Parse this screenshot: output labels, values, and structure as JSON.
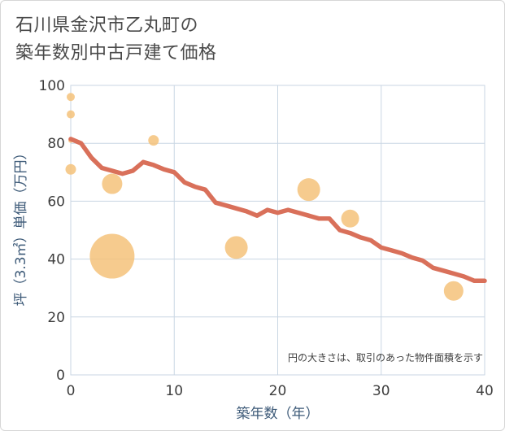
{
  "chart_data": {
    "type": "scatter",
    "title_lines": [
      "石川県金沢市乙丸町の",
      "築年数別中古戸建て価格"
    ],
    "xlabel": "築年数（年）",
    "ylabel": "坪（3.3㎡）単価（万円）",
    "xlim": [
      0,
      40
    ],
    "ylim": [
      0,
      100
    ],
    "x_ticks": [
      0,
      10,
      20,
      30,
      40
    ],
    "y_ticks": [
      0,
      20,
      40,
      60,
      80,
      100
    ],
    "grid": true,
    "annotation": "円の大きさは、取引のあった物件面積を示す",
    "colors": {
      "bubble": "#f5c27a",
      "line": "#d9705a",
      "grid": "#c9d6e3",
      "axis_text": "#3d5a78"
    },
    "scatter_points": [
      {
        "x": 0,
        "y": 96,
        "size": 1
      },
      {
        "x": 0,
        "y": 90,
        "size": 1
      },
      {
        "x": 0,
        "y": 71,
        "size": 1.3
      },
      {
        "x": 0,
        "y": 81,
        "size": 0.6
      },
      {
        "x": 4,
        "y": 41,
        "size": 5.5
      },
      {
        "x": 4,
        "y": 66,
        "size": 2.5
      },
      {
        "x": 8,
        "y": 81,
        "size": 1.3
      },
      {
        "x": 16,
        "y": 44,
        "size": 2.8
      },
      {
        "x": 23,
        "y": 64,
        "size": 2.8
      },
      {
        "x": 27,
        "y": 54,
        "size": 2.2
      },
      {
        "x": 37,
        "y": 29,
        "size": 2.4
      }
    ],
    "trend_line": {
      "x": [
        0,
        1,
        2,
        3,
        4,
        5,
        6,
        7,
        8,
        9,
        10,
        11,
        12,
        13,
        14,
        15,
        16,
        17,
        18,
        19,
        20,
        21,
        22,
        23,
        24,
        25,
        26,
        27,
        28,
        29,
        30,
        31,
        32,
        33,
        34,
        35,
        36,
        37,
        38,
        39,
        40
      ],
      "y": [
        81.5,
        80,
        75,
        71.5,
        70.5,
        69.5,
        70.5,
        73.5,
        72.5,
        71,
        70,
        66.5,
        65,
        64,
        59.5,
        58.5,
        57.5,
        56.5,
        55,
        57,
        56,
        57,
        56,
        55,
        54,
        54,
        50,
        49,
        47.5,
        46.5,
        44,
        43,
        42,
        40.5,
        39.5,
        37,
        36,
        35,
        34,
        32.5,
        32.5
      ]
    }
  }
}
